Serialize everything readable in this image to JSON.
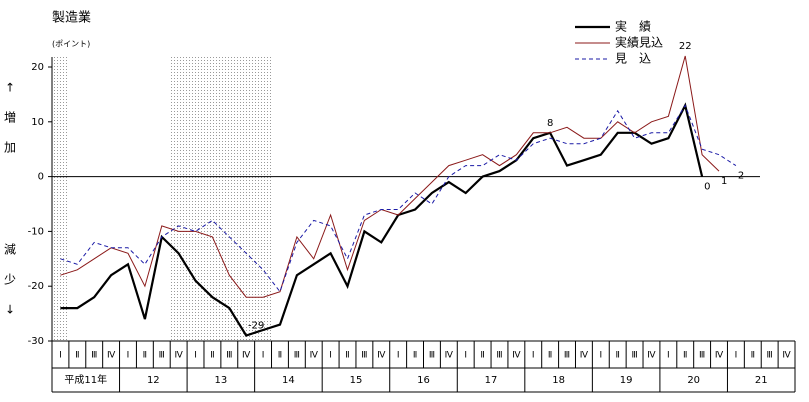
{
  "chart_data": {
    "type": "line",
    "title": "製造業",
    "unit": "(ポイント)",
    "ylabel_increase": [
      "↑",
      "増",
      "加"
    ],
    "ylabel_decrease": [
      "減",
      "少",
      "↓"
    ],
    "categories": [
      "Ⅰ",
      "Ⅱ",
      "Ⅲ",
      "Ⅳ",
      "Ⅰ",
      "Ⅱ",
      "Ⅲ",
      "Ⅳ",
      "Ⅰ",
      "Ⅱ",
      "Ⅲ",
      "Ⅳ",
      "Ⅰ",
      "Ⅱ",
      "Ⅲ",
      "Ⅳ",
      "Ⅰ",
      "Ⅱ",
      "Ⅲ",
      "Ⅳ",
      "Ⅰ",
      "Ⅱ",
      "Ⅲ",
      "Ⅳ",
      "Ⅰ",
      "Ⅱ",
      "Ⅲ",
      "Ⅳ",
      "Ⅰ",
      "Ⅱ",
      "Ⅲ",
      "Ⅳ",
      "Ⅰ",
      "Ⅱ",
      "Ⅲ",
      "Ⅳ",
      "Ⅰ",
      "Ⅱ",
      "Ⅲ",
      "Ⅳ",
      "Ⅰ",
      "Ⅱ",
      "Ⅲ",
      "Ⅳ"
    ],
    "years": [
      "平成11年",
      "12",
      "13",
      "14",
      "15",
      "16",
      "17",
      "18",
      "19",
      "20",
      "21"
    ],
    "shaded": [
      [
        0,
        0
      ],
      [
        7,
        12
      ]
    ],
    "ylim": [
      -30,
      20
    ],
    "yticks": [
      -30,
      -20,
      -10,
      0,
      10,
      20
    ],
    "series": [
      {
        "name": "実　績",
        "color": "#000000",
        "width": 2.2,
        "dash": "none",
        "values": [
          -24,
          -24,
          -22,
          -18,
          -16,
          -26,
          -11,
          -14,
          -19,
          -22,
          -24,
          -29,
          -28,
          -27,
          -18,
          -16,
          -14,
          -20,
          -10,
          -12,
          -7,
          -6,
          -3,
          -1,
          -3,
          0,
          1,
          3,
          7,
          8,
          2,
          3,
          4,
          8,
          8,
          6,
          7,
          13,
          0,
          null,
          null,
          null,
          null,
          null
        ],
        "value_labels": [
          null,
          null,
          null,
          null,
          null,
          null,
          null,
          null,
          null,
          null,
          null,
          "-29",
          null,
          null,
          null,
          null,
          null,
          null,
          null,
          null,
          null,
          null,
          null,
          null,
          null,
          null,
          null,
          null,
          null,
          "8",
          null,
          null,
          null,
          null,
          null,
          null,
          null,
          null,
          "0",
          null,
          null,
          null,
          null,
          null
        ]
      },
      {
        "name": "実績見込",
        "color": "#8b1a1a",
        "width": 1,
        "dash": "none",
        "values": [
          -18,
          -17,
          -15,
          -13,
          -14,
          -20,
          -9,
          -10,
          -10,
          -11,
          -18,
          -22,
          -22,
          -21,
          -11,
          -15,
          -7,
          -17,
          -8,
          -6,
          -7,
          -4,
          -1,
          2,
          3,
          4,
          2,
          4,
          8,
          8,
          9,
          7,
          7,
          10,
          8,
          10,
          11,
          22,
          4,
          1,
          null,
          null,
          null,
          null
        ],
        "value_labels": [
          null,
          null,
          null,
          null,
          null,
          null,
          null,
          null,
          null,
          null,
          null,
          null,
          null,
          null,
          null,
          null,
          null,
          null,
          null,
          null,
          null,
          null,
          null,
          null,
          null,
          null,
          null,
          null,
          null,
          null,
          null,
          null,
          null,
          null,
          null,
          null,
          null,
          "22",
          null,
          "1",
          null,
          null,
          null,
          null
        ]
      },
      {
        "name": "見　込",
        "color": "#1a1aa6",
        "width": 1,
        "dash": "4,3",
        "values": [
          -15,
          -16,
          -12,
          -13,
          -13,
          -16,
          -11,
          -9,
          -10,
          -8,
          -11,
          -14,
          -17,
          -21,
          -12,
          -8,
          -9,
          -15,
          -7,
          -6,
          -6,
          -3,
          -5,
          0,
          2,
          2,
          4,
          3,
          6,
          7,
          6,
          6,
          7,
          12,
          7,
          8,
          8,
          13,
          5,
          4,
          2,
          null,
          null,
          null
        ],
        "value_labels": [
          null,
          null,
          null,
          null,
          null,
          null,
          null,
          null,
          null,
          null,
          null,
          null,
          null,
          null,
          null,
          null,
          null,
          null,
          null,
          null,
          null,
          null,
          null,
          null,
          null,
          null,
          null,
          null,
          null,
          null,
          null,
          null,
          null,
          null,
          null,
          null,
          null,
          null,
          null,
          null,
          "2",
          null,
          null,
          null
        ]
      }
    ]
  }
}
